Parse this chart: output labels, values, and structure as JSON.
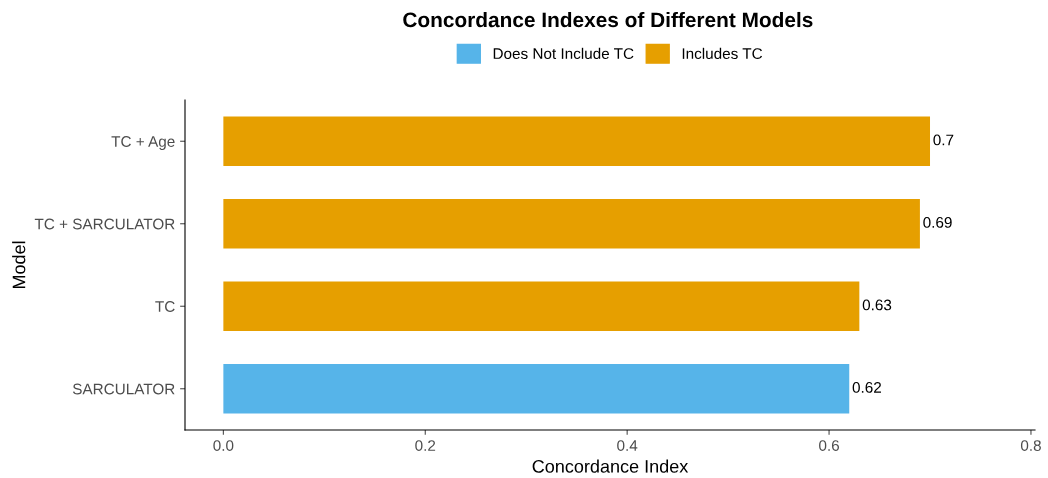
{
  "chart_data": {
    "type": "bar",
    "orientation": "horizontal",
    "title": "Concordance Indexes of Different Models",
    "xlabel": "Concordance Index",
    "ylabel": "Model",
    "categories": [
      "TC + Age",
      "TC + SARCULATOR",
      "TC",
      "SARCULATOR"
    ],
    "series": [
      {
        "name": "Does Not Include TC",
        "color": "#56b4e9",
        "values": [
          null,
          null,
          null,
          0.62
        ]
      },
      {
        "name": "Includes TC",
        "color": "#e69f00",
        "values": [
          0.7,
          0.69,
          0.63,
          null
        ]
      }
    ],
    "xlim": [
      -0.038,
      0.804
    ],
    "xticks": [
      {
        "value": 0,
        "label": "0.0"
      },
      0.2,
      0.4,
      0.6,
      0.8
    ],
    "data_labels": true,
    "legend": "top",
    "grid": false
  }
}
